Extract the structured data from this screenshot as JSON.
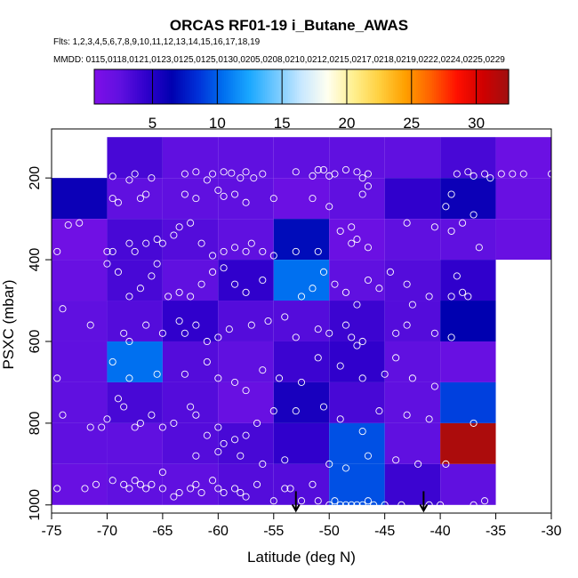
{
  "chart_data": {
    "type": "heatmap",
    "title": "ORCAS RF01-19 i_Butane_AWAS",
    "flights_line": "Flts: 1,2,3,4,5,6,7,8,9,10,11,12,13,14,15,16,17,18,19",
    "dates_line": "MMDD: 0115,0118,0121,0123,0125,0125,0130,0205,0208,0210,0212,0215,0217,0218,0219,0222,0224,0225,0229",
    "xlabel": "Latitude (deg N)",
    "ylabel": "PSXC (mbar)",
    "xlim": [
      -75,
      -30
    ],
    "ylim": [
      1020,
      80
    ],
    "x_ticks": [
      -75,
      -70,
      -65,
      -60,
      -55,
      -50,
      -45,
      -40,
      -35,
      -30
    ],
    "y_ticks": [
      200,
      400,
      600,
      800,
      1000
    ],
    "colorbar": {
      "range": [
        0.5,
        32.5
      ],
      "ticks": [
        5,
        10,
        15,
        20,
        25,
        30
      ],
      "colors": [
        "#7f0fe8",
        "#6010e0",
        "#3000cc",
        "#0000b0",
        "#0030d8",
        "#0070f0",
        "#1aa8ff",
        "#70c8ff",
        "#c8e8ff",
        "#fffff0",
        "#fff090",
        "#ffd040",
        "#ffa000",
        "#ff6000",
        "#ff1000",
        "#d00000",
        "#a01010"
      ]
    },
    "cell_size": {
      "lat": 5,
      "pres": 100
    },
    "cells": [
      {
        "lat": -70,
        "p": 100,
        "v": 3.5
      },
      {
        "lat": -65,
        "p": 100,
        "v": 2.5
      },
      {
        "lat": -60,
        "p": 100,
        "v": 2.5
      },
      {
        "lat": -55,
        "p": 100,
        "v": 2.5
      },
      {
        "lat": -50,
        "p": 100,
        "v": 2.5
      },
      {
        "lat": -45,
        "p": 100,
        "v": 2.5
      },
      {
        "lat": -40,
        "p": 100,
        "v": 3.5
      },
      {
        "lat": -35,
        "p": 100,
        "v": 1.8
      },
      {
        "lat": -75,
        "p": 200,
        "v": 6.0
      },
      {
        "lat": -70,
        "p": 200,
        "v": 2.5
      },
      {
        "lat": -65,
        "p": 200,
        "v": 2.5
      },
      {
        "lat": -60,
        "p": 200,
        "v": 2.5
      },
      {
        "lat": -55,
        "p": 200,
        "v": 1.8
      },
      {
        "lat": -50,
        "p": 200,
        "v": 2.5
      },
      {
        "lat": -45,
        "p": 200,
        "v": 4.5
      },
      {
        "lat": -40,
        "p": 200,
        "v": 6.0
      },
      {
        "lat": -35,
        "p": 200,
        "v": 2.0
      },
      {
        "lat": -75,
        "p": 300,
        "v": 1.5
      },
      {
        "lat": -70,
        "p": 300,
        "v": 3.5
      },
      {
        "lat": -65,
        "p": 300,
        "v": 3.0
      },
      {
        "lat": -60,
        "p": 300,
        "v": 2.5
      },
      {
        "lat": -55,
        "p": 300,
        "v": 7.0
      },
      {
        "lat": -50,
        "p": 300,
        "v": 1.8
      },
      {
        "lat": -45,
        "p": 300,
        "v": 2.5
      },
      {
        "lat": -40,
        "p": 300,
        "v": 2.5
      },
      {
        "lat": -35,
        "p": 300,
        "v": 2.0
      },
      {
        "lat": -75,
        "p": 400,
        "v": 2.0
      },
      {
        "lat": -70,
        "p": 400,
        "v": 3.5
      },
      {
        "lat": -65,
        "p": 400,
        "v": 2.5
      },
      {
        "lat": -60,
        "p": 400,
        "v": 4.5
      },
      {
        "lat": -55,
        "p": 400,
        "v": 10.5
      },
      {
        "lat": -50,
        "p": 400,
        "v": 2.5
      },
      {
        "lat": -45,
        "p": 400,
        "v": 3.0
      },
      {
        "lat": -40,
        "p": 400,
        "v": 4.5
      },
      {
        "lat": -75,
        "p": 500,
        "v": 2.5
      },
      {
        "lat": -70,
        "p": 500,
        "v": 3.0
      },
      {
        "lat": -65,
        "p": 500,
        "v": 4.5
      },
      {
        "lat": -60,
        "p": 500,
        "v": 3.0
      },
      {
        "lat": -55,
        "p": 500,
        "v": 3.0
      },
      {
        "lat": -50,
        "p": 500,
        "v": 4.0
      },
      {
        "lat": -45,
        "p": 500,
        "v": 3.0
      },
      {
        "lat": -40,
        "p": 500,
        "v": 6.5
      },
      {
        "lat": -75,
        "p": 600,
        "v": 2.5
      },
      {
        "lat": -70,
        "p": 600,
        "v": 10.5
      },
      {
        "lat": -65,
        "p": 600,
        "v": 3.0
      },
      {
        "lat": -60,
        "p": 600,
        "v": 2.5
      },
      {
        "lat": -55,
        "p": 600,
        "v": 4.0
      },
      {
        "lat": -50,
        "p": 600,
        "v": 4.5
      },
      {
        "lat": -45,
        "p": 600,
        "v": 2.5
      },
      {
        "lat": -40,
        "p": 600,
        "v": 2.0
      },
      {
        "lat": -75,
        "p": 700,
        "v": 2.5
      },
      {
        "lat": -70,
        "p": 700,
        "v": 3.5
      },
      {
        "lat": -65,
        "p": 700,
        "v": 3.0
      },
      {
        "lat": -60,
        "p": 700,
        "v": 2.0
      },
      {
        "lat": -55,
        "p": 700,
        "v": 5.5
      },
      {
        "lat": -50,
        "p": 700,
        "v": 3.5
      },
      {
        "lat": -45,
        "p": 700,
        "v": 2.5
      },
      {
        "lat": -40,
        "p": 700,
        "v": 9.0
      },
      {
        "lat": -75,
        "p": 800,
        "v": 2.5
      },
      {
        "lat": -70,
        "p": 800,
        "v": 2.5
      },
      {
        "lat": -65,
        "p": 800,
        "v": 3.0
      },
      {
        "lat": -60,
        "p": 800,
        "v": 3.5
      },
      {
        "lat": -55,
        "p": 800,
        "v": 4.5
      },
      {
        "lat": -50,
        "p": 800,
        "v": 9.5
      },
      {
        "lat": -45,
        "p": 800,
        "v": 2.5
      },
      {
        "lat": -40,
        "p": 800,
        "v": 32.0
      },
      {
        "lat": -75,
        "p": 900,
        "v": 2.0
      },
      {
        "lat": -70,
        "p": 900,
        "v": 2.5
      },
      {
        "lat": -65,
        "p": 900,
        "v": 2.5
      },
      {
        "lat": -60,
        "p": 900,
        "v": 3.0
      },
      {
        "lat": -55,
        "p": 900,
        "v": 3.0
      },
      {
        "lat": -50,
        "p": 900,
        "v": 9.5
      },
      {
        "lat": -45,
        "p": 900,
        "v": 4.0
      },
      {
        "lat": -40,
        "p": 900,
        "v": 2.5
      }
    ],
    "arrows": [
      {
        "lat": -53,
        "p": 1010
      },
      {
        "lat": -41.5,
        "p": 1010
      }
    ],
    "points": [
      [
        -69.5,
        196
      ],
      [
        -68,
        205
      ],
      [
        -67.5,
        190
      ],
      [
        -66,
        200
      ],
      [
        -63,
        190
      ],
      [
        -62,
        185
      ],
      [
        -61,
        205
      ],
      [
        -60.5,
        190
      ],
      [
        -59.5,
        185
      ],
      [
        -58.8,
        188
      ],
      [
        -58,
        200
      ],
      [
        -57.5,
        185
      ],
      [
        -56.8,
        200
      ],
      [
        -56,
        190
      ],
      [
        -53,
        185
      ],
      [
        -51.5,
        195
      ],
      [
        -51,
        180
      ],
      [
        -50.5,
        180
      ],
      [
        -50,
        195
      ],
      [
        -49.5,
        190
      ],
      [
        -48.5,
        180
      ],
      [
        -47.5,
        185
      ],
      [
        -47,
        200
      ],
      [
        -46.5,
        190
      ],
      [
        -38.5,
        190
      ],
      [
        -37.5,
        185
      ],
      [
        -37,
        195
      ],
      [
        -36,
        190
      ],
      [
        -35.5,
        200
      ],
      [
        -34.5,
        190
      ],
      [
        -33.5,
        190
      ],
      [
        -32.5,
        190
      ],
      [
        -30,
        190
      ],
      [
        -69.5,
        250
      ],
      [
        -69,
        260
      ],
      [
        -67,
        250
      ],
      [
        -66.5,
        240
      ],
      [
        -63,
        240
      ],
      [
        -62,
        250
      ],
      [
        -60,
        230
      ],
      [
        -59.5,
        245
      ],
      [
        -58.5,
        240
      ],
      [
        -57.5,
        260
      ],
      [
        -55,
        250
      ],
      [
        -51.5,
        250
      ],
      [
        -47,
        240
      ],
      [
        -46.5,
        220
      ],
      [
        -39,
        240
      ],
      [
        -39.5,
        270
      ],
      [
        -73.5,
        315
      ],
      [
        -72.5,
        310
      ],
      [
        -70,
        380
      ],
      [
        -69.5,
        380
      ],
      [
        -68,
        360
      ],
      [
        -67.5,
        380
      ],
      [
        -66.5,
        360
      ],
      [
        -65.5,
        350
      ],
      [
        -65,
        360
      ],
      [
        -64,
        340
      ],
      [
        -63.5,
        320
      ],
      [
        -62.5,
        310
      ],
      [
        -61.5,
        360
      ],
      [
        -60.5,
        390
      ],
      [
        -59.5,
        380
      ],
      [
        -58.5,
        370
      ],
      [
        -57.5,
        380
      ],
      [
        -57,
        360
      ],
      [
        -56,
        380
      ],
      [
        -55,
        390
      ],
      [
        -53,
        380
      ],
      [
        -51,
        380
      ],
      [
        -50,
        270
      ],
      [
        -49,
        330
      ],
      [
        -48,
        320
      ],
      [
        -47.5,
        350
      ],
      [
        -48,
        360
      ],
      [
        -46.5,
        370
      ],
      [
        -43,
        310
      ],
      [
        -40.5,
        320
      ],
      [
        -39,
        330
      ],
      [
        -38,
        310
      ],
      [
        -37,
        290
      ],
      [
        -36.5,
        370
      ],
      [
        -74.5,
        380
      ],
      [
        -74,
        520
      ],
      [
        -70,
        410
      ],
      [
        -69,
        430
      ],
      [
        -68,
        490
      ],
      [
        -67,
        470
      ],
      [
        -66,
        440
      ],
      [
        -65.5,
        410
      ],
      [
        -64.5,
        490
      ],
      [
        -63.5,
        480
      ],
      [
        -62.5,
        490
      ],
      [
        -61.5,
        460
      ],
      [
        -60.5,
        430
      ],
      [
        -59.5,
        420
      ],
      [
        -58.5,
        460
      ],
      [
        -57.5,
        480
      ],
      [
        -56,
        450
      ],
      [
        -54,
        540
      ],
      [
        -52.5,
        490
      ],
      [
        -51.5,
        470
      ],
      [
        -50.5,
        430
      ],
      [
        -49.5,
        460
      ],
      [
        -48.5,
        480
      ],
      [
        -47.5,
        510
      ],
      [
        -46.5,
        450
      ],
      [
        -45.5,
        470
      ],
      [
        -44.5,
        430
      ],
      [
        -43,
        460
      ],
      [
        -42.5,
        510
      ],
      [
        -41,
        490
      ],
      [
        -39,
        490
      ],
      [
        -38.5,
        440
      ],
      [
        -38,
        480
      ],
      [
        -37.5,
        490
      ],
      [
        -71.5,
        560
      ],
      [
        -68.5,
        580
      ],
      [
        -68,
        600
      ],
      [
        -66.5,
        560
      ],
      [
        -65,
        580
      ],
      [
        -63.5,
        550
      ],
      [
        -63,
        580
      ],
      [
        -62,
        560
      ],
      [
        -61,
        600
      ],
      [
        -60,
        590
      ],
      [
        -59,
        570
      ],
      [
        -57,
        560
      ],
      [
        -55.5,
        550
      ],
      [
        -53,
        590
      ],
      [
        -51,
        570
      ],
      [
        -50,
        580
      ],
      [
        -48.5,
        560
      ],
      [
        -48,
        590
      ],
      [
        -47.5,
        610
      ],
      [
        -47,
        600
      ],
      [
        -44,
        580
      ],
      [
        -43,
        560
      ],
      [
        -40.5,
        580
      ],
      [
        -39,
        590
      ],
      [
        -74.5,
        690
      ],
      [
        -69.5,
        650
      ],
      [
        -68,
        690
      ],
      [
        -65.5,
        680
      ],
      [
        -63,
        680
      ],
      [
        -61,
        650
      ],
      [
        -60,
        690
      ],
      [
        -58.5,
        700
      ],
      [
        -57.5,
        720
      ],
      [
        -56,
        670
      ],
      [
        -54.5,
        690
      ],
      [
        -52.5,
        700
      ],
      [
        -51,
        640
      ],
      [
        -49,
        660
      ],
      [
        -47,
        690
      ],
      [
        -45,
        680
      ],
      [
        -44,
        640
      ],
      [
        -42.5,
        690
      ],
      [
        -40.5,
        710
      ],
      [
        -74,
        780
      ],
      [
        -71.5,
        810
      ],
      [
        -70.5,
        810
      ],
      [
        -70,
        790
      ],
      [
        -69,
        740
      ],
      [
        -68.5,
        760
      ],
      [
        -67.5,
        810
      ],
      [
        -67,
        800
      ],
      [
        -66,
        780
      ],
      [
        -65,
        810
      ],
      [
        -64,
        800
      ],
      [
        -62.5,
        760
      ],
      [
        -62,
        780
      ],
      [
        -61,
        830
      ],
      [
        -60,
        810
      ],
      [
        -59.5,
        850
      ],
      [
        -58.5,
        840
      ],
      [
        -57.5,
        830
      ],
      [
        -56.5,
        800
      ],
      [
        -55,
        770
      ],
      [
        -53,
        770
      ],
      [
        -50.5,
        760
      ],
      [
        -49,
        790
      ],
      [
        -47,
        820
      ],
      [
        -45.5,
        770
      ],
      [
        -43,
        780
      ],
      [
        -41,
        790
      ],
      [
        -37,
        800
      ],
      [
        -74.5,
        960
      ],
      [
        -72,
        960
      ],
      [
        -71,
        950
      ],
      [
        -69.5,
        940
      ],
      [
        -68.5,
        950
      ],
      [
        -68,
        960
      ],
      [
        -67.5,
        940
      ],
      [
        -67,
        950
      ],
      [
        -66.5,
        960
      ],
      [
        -66,
        950
      ],
      [
        -65,
        960
      ],
      [
        -64,
        980
      ],
      [
        -63.5,
        970
      ],
      [
        -62.5,
        960
      ],
      [
        -62,
        950
      ],
      [
        -61.5,
        970
      ],
      [
        -60.5,
        940
      ],
      [
        -60,
        960
      ],
      [
        -59.5,
        970
      ],
      [
        -58.5,
        960
      ],
      [
        -58,
        970
      ],
      [
        -57.5,
        980
      ],
      [
        -56.5,
        950
      ],
      [
        -55,
        990
      ],
      [
        -54,
        960
      ],
      [
        -53.5,
        960
      ],
      [
        -52.5,
        990
      ],
      [
        -51.5,
        950
      ],
      [
        -51,
        990
      ],
      [
        -50,
        1000
      ],
      [
        -49.5,
        990
      ],
      [
        -49,
        1000
      ],
      [
        -48.5,
        1000
      ],
      [
        -48,
        1000
      ],
      [
        -47.5,
        1000
      ],
      [
        -47,
        1000
      ],
      [
        -46.5,
        990
      ],
      [
        -46,
        1000
      ],
      [
        -45,
        1000
      ],
      [
        -43.5,
        1000
      ],
      [
        -41,
        1000
      ],
      [
        -40,
        1000
      ],
      [
        -37,
        1000
      ],
      [
        -36,
        990
      ],
      [
        -65,
        920
      ],
      [
        -62,
        880
      ],
      [
        -60,
        870
      ],
      [
        -58,
        880
      ],
      [
        -56,
        900
      ],
      [
        -54,
        890
      ],
      [
        -50,
        900
      ],
      [
        -48.5,
        910
      ],
      [
        -46.5,
        880
      ],
      [
        -44,
        890
      ],
      [
        -42,
        900
      ],
      [
        -39.5,
        900
      ]
    ]
  }
}
